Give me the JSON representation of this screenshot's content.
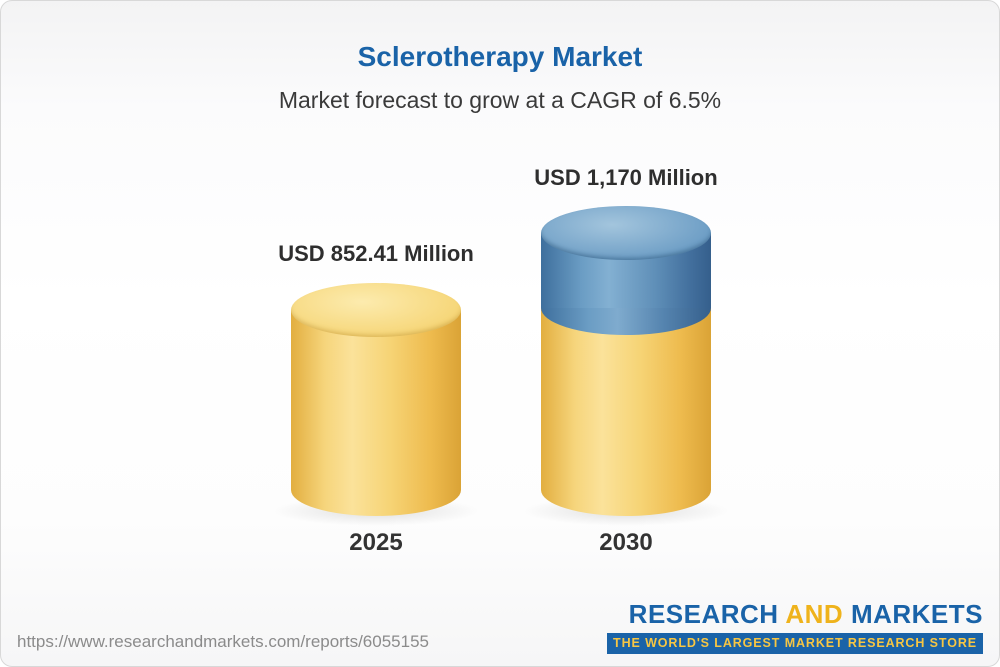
{
  "header": {
    "title": "Sclerotherapy Market",
    "subtitle": "Market forecast to grow at a CAGR of 6.5%"
  },
  "chart_data": {
    "type": "bar",
    "title": "Sclerotherapy Market",
    "subtitle": "Market forecast to grow at a CAGR of 6.5%",
    "categories": [
      "2025",
      "2030"
    ],
    "values": [
      852.41,
      1170
    ],
    "value_labels": [
      "USD 852.41 Million",
      "USD 1,170 Million"
    ],
    "unit": "USD Million",
    "cagr": "6.5%",
    "legend": "none",
    "notes": "3D cylinder bars; 2030 bar has a blue top segment above the yellow base indicating growth over 2025"
  },
  "bars": [
    {
      "year": "2025",
      "label": "USD 852.41 Million",
      "value": 852.41
    },
    {
      "year": "2030",
      "label": "USD 1,170 Million",
      "value": 1170
    }
  ],
  "footer": {
    "report_url": "https://www.researchandmarkets.com/reports/6055155",
    "logo": {
      "word1": "RESEARCH",
      "word2": "AND",
      "word3": "MARKETS",
      "tagline": "THE WORLD'S LARGEST MARKET RESEARCH STORE"
    }
  },
  "colors": {
    "title_blue": "#1a63a8",
    "bar_yellow": "#f6cf65",
    "bar_blue": "#4d80ad",
    "logo_blue": "#1a63a8",
    "logo_gold": "#efb31c",
    "tagline_bg": "#1a63a8",
    "tagline_text": "#f7c643",
    "url_gray": "#8b8b8b"
  }
}
